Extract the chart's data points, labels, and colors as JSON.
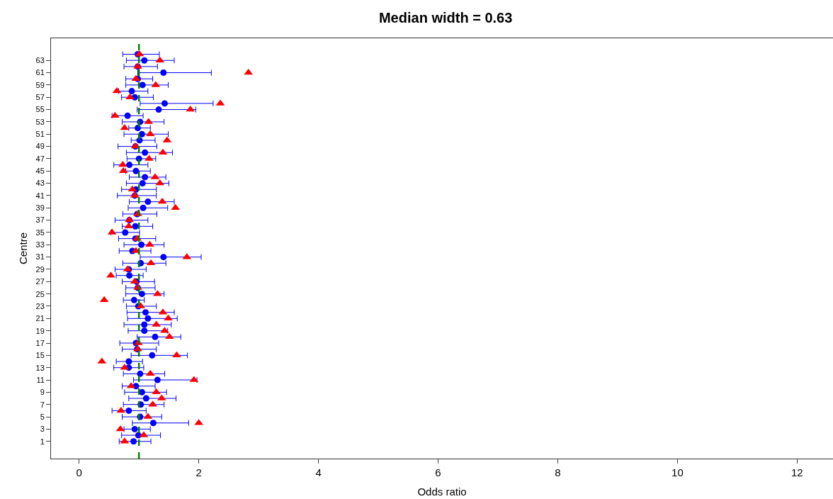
{
  "chart_data": {
    "type": "scatter",
    "title": "Median width = 0.63",
    "xlabel": "Odds ratio",
    "ylabel": "Centre",
    "xlim": [
      -0.47,
      12.6
    ],
    "xticks": [
      0,
      2,
      4,
      6,
      8,
      10,
      12
    ],
    "ylim": [
      -1.8,
      66.6
    ],
    "yticks": [
      1,
      3,
      5,
      7,
      9,
      11,
      13,
      15,
      17,
      19,
      21,
      23,
      25,
      27,
      29,
      31,
      33,
      35,
      37,
      39,
      41,
      43,
      45,
      47,
      49,
      51,
      53,
      55,
      57,
      59,
      61,
      63
    ],
    "grid": false,
    "ref_lines": [
      {
        "axis": "x",
        "value": 1,
        "color": "#008000",
        "line_style": "dashed"
      }
    ],
    "series": [
      {
        "color": "#0000ff",
        "marker": "circle",
        "x": [
          0.91,
          0.99,
          0.93,
          1.24,
          1.02,
          0.83,
          1.03,
          1.12,
          1.05,
          0.95,
          1.31,
          1.02,
          0.83,
          0.83,
          1.22,
          0.97,
          0.95,
          1.27,
          1.09,
          1.09,
          1.15,
          1.11,
          0.99,
          0.92,
          1.05,
          0.98,
          0.96,
          0.84,
          0.83,
          1.03,
          1.41,
          0.89,
          1.04,
          0.94,
          0.77,
          0.94,
          0.84,
          0.97,
          1.07,
          1.15,
          0.93,
          0.95,
          1.06,
          1.1,
          0.95,
          0.84,
          1.0,
          1.1,
          0.94,
          1.01,
          1.05,
          0.98,
          1.02,
          0.81,
          1.33,
          1.43,
          0.93,
          0.88,
          1.06,
          0.98,
          1.41,
          0.98,
          1.09,
          0.98
        ],
        "values": [
          1,
          2,
          3,
          4,
          5,
          6,
          7,
          8,
          9,
          10,
          11,
          12,
          13,
          14,
          15,
          16,
          17,
          18,
          19,
          20,
          21,
          22,
          23,
          24,
          25,
          26,
          27,
          28,
          29,
          30,
          31,
          32,
          33,
          34,
          35,
          36,
          37,
          38,
          39,
          40,
          41,
          42,
          43,
          44,
          45,
          46,
          47,
          48,
          49,
          50,
          51,
          52,
          53,
          54,
          55,
          56,
          57,
          58,
          59,
          60,
          61,
          62,
          63,
          64
        ],
        "xerrors": [
          [
            0.67,
            1.2
          ],
          [
            0.71,
            1.36
          ],
          [
            0.75,
            1.19
          ],
          [
            0.89,
            1.83
          ],
          [
            0.72,
            1.38
          ],
          [
            0.55,
            1.12
          ],
          [
            0.74,
            1.42
          ],
          [
            0.83,
            1.62
          ],
          [
            0.76,
            1.46
          ],
          [
            0.72,
            1.27
          ],
          [
            0.91,
            1.97
          ],
          [
            0.74,
            1.43
          ],
          [
            0.58,
            1.08
          ],
          [
            0.62,
            1.06
          ],
          [
            0.87,
            1.81
          ],
          [
            0.72,
            1.29
          ],
          [
            0.68,
            1.33
          ],
          [
            0.97,
            1.7
          ],
          [
            0.82,
            1.48
          ],
          [
            0.75,
            1.54
          ],
          [
            0.81,
            1.64
          ],
          [
            0.8,
            1.59
          ],
          [
            0.79,
            1.29
          ],
          [
            0.74,
            1.09
          ],
          [
            0.78,
            1.42
          ],
          [
            0.78,
            1.27
          ],
          [
            0.72,
            1.26
          ],
          [
            0.62,
            1.07
          ],
          [
            0.6,
            1.12
          ],
          [
            0.73,
            1.45
          ],
          [
            1.02,
            2.04
          ],
          [
            0.67,
            1.2
          ],
          [
            0.75,
            1.42
          ],
          [
            0.66,
            1.28
          ],
          [
            0.53,
            1.01
          ],
          [
            0.72,
            1.23
          ],
          [
            0.6,
            1.15
          ],
          [
            0.73,
            1.3
          ],
          [
            0.82,
            1.48
          ],
          [
            0.84,
            1.59
          ],
          [
            0.64,
            1.29
          ],
          [
            0.71,
            1.29
          ],
          [
            0.79,
            1.5
          ],
          [
            0.84,
            1.45
          ],
          [
            0.78,
            1.19
          ],
          [
            0.58,
            1.15
          ],
          [
            0.8,
            1.28
          ],
          [
            0.79,
            1.56
          ],
          [
            0.65,
            1.3
          ],
          [
            0.87,
            1.27
          ],
          [
            0.75,
            1.49
          ],
          [
            0.83,
            1.19
          ],
          [
            0.72,
            1.42
          ],
          [
            0.55,
            1.07
          ],
          [
            0.97,
            1.95
          ],
          [
            1.02,
            2.24
          ],
          [
            0.71,
            1.24
          ],
          [
            0.66,
            1.15
          ],
          [
            0.78,
            1.49
          ],
          [
            0.78,
            1.23
          ],
          [
            0.98,
            2.21
          ],
          [
            0.75,
            1.31
          ],
          [
            0.79,
            1.59
          ],
          [
            0.73,
            1.34
          ]
        ]
      },
      {
        "color": "#ff0000",
        "marker": "triangle",
        "x": [
          0.76,
          1.08,
          0.69,
          2.0,
          1.15,
          0.7,
          1.23,
          1.38,
          1.29,
          0.87,
          1.92,
          1.19,
          0.76,
          0.38,
          1.63,
          0.98,
          0.99,
          1.51,
          1.43,
          1.29,
          1.49,
          1.4,
          1.03,
          0.42,
          1.31,
          0.98,
          0.93,
          0.53,
          0.81,
          1.2,
          1.8,
          0.95,
          1.18,
          0.97,
          0.55,
          0.83,
          0.84,
          0.98,
          1.61,
          1.39,
          0.93,
          0.89,
          1.35,
          1.27,
          0.74,
          0.73,
          1.17,
          1.4,
          0.94,
          1.47,
          1.19,
          0.76,
          1.16,
          0.6,
          1.86,
          2.36,
          0.85,
          0.63,
          1.28,
          0.95,
          2.83,
          0.98,
          1.35,
          1.01
        ],
        "values": [
          1,
          2,
          3,
          4,
          5,
          6,
          7,
          8,
          9,
          10,
          11,
          12,
          13,
          14,
          15,
          16,
          17,
          18,
          19,
          20,
          21,
          22,
          23,
          24,
          25,
          26,
          27,
          28,
          29,
          30,
          31,
          32,
          33,
          34,
          35,
          36,
          37,
          38,
          39,
          40,
          41,
          42,
          43,
          44,
          45,
          46,
          47,
          48,
          49,
          50,
          51,
          52,
          53,
          54,
          55,
          56,
          57,
          58,
          59,
          60,
          61,
          62,
          63,
          64
        ]
      }
    ]
  }
}
